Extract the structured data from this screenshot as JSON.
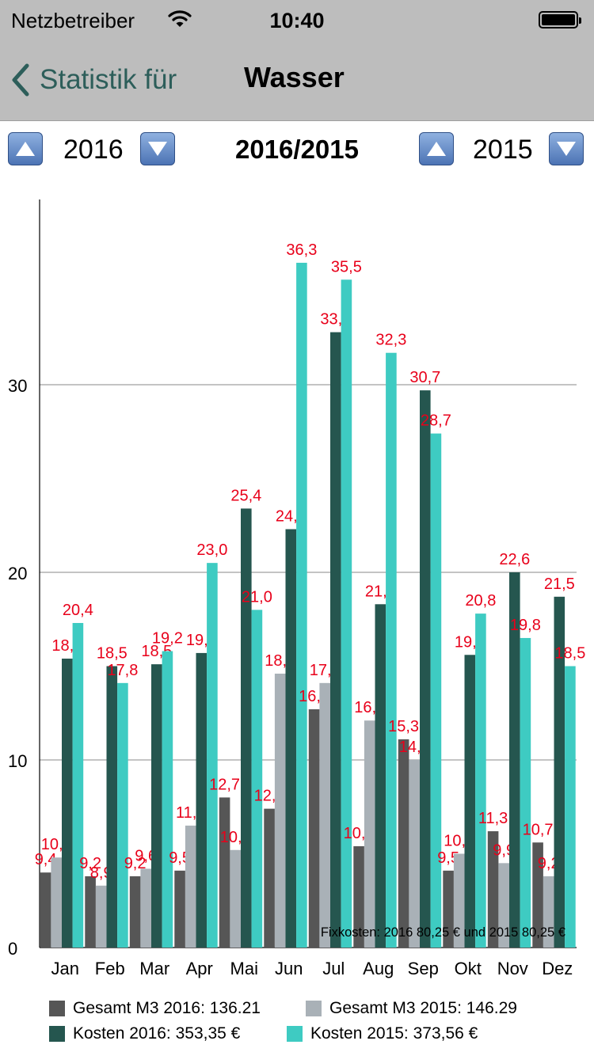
{
  "status_bar": {
    "carrier": "Netzbetreiber",
    "time": "10:40"
  },
  "nav": {
    "back_label": "Statistik für",
    "title": "Wasser"
  },
  "year_selector": {
    "left_year": "2016",
    "compare_label": "2016/2015",
    "right_year": "2015"
  },
  "colors": {
    "gesamt_2016": "#565656",
    "gesamt_2015": "#a9b1b7",
    "kosten_2016": "#25564f",
    "kosten_2015": "#3ecbc2",
    "value_label": "#e8001a"
  },
  "chart_data": {
    "type": "bar",
    "categories": [
      "Jan",
      "Feb",
      "Mar",
      "Apr",
      "Mai",
      "Jun",
      "Jul",
      "Aug",
      "Sep",
      "Okt",
      "Nov",
      "Dez"
    ],
    "ylim": [
      0,
      40
    ],
    "yticks": [
      0,
      10,
      20,
      30
    ],
    "grid": true,
    "series": [
      {
        "name": "Gesamt M3 2016: 136.21",
        "color": "#565656",
        "values": [
          4.0,
          3.8,
          3.8,
          4.1,
          8.0,
          7.4,
          12.7,
          5.4,
          11.1,
          4.1,
          6.2,
          5.6
        ]
      },
      {
        "name": "Gesamt M3 2015: 146.29",
        "color": "#a9b1b7",
        "values": [
          4.8,
          3.3,
          4.2,
          6.5,
          5.2,
          14.6,
          14.1,
          12.1,
          10.0,
          5.0,
          4.5,
          3.8
        ]
      },
      {
        "name": "Kosten 2016: 353,35 €",
        "color": "#25564f",
        "values": [
          15.4,
          15.0,
          15.1,
          15.7,
          23.4,
          22.3,
          32.8,
          18.3,
          29.7,
          15.6,
          20.0,
          18.7
        ]
      },
      {
        "name": "Kosten 2015: 373,56 €",
        "color": "#3ecbc2",
        "values": [
          17.3,
          14.1,
          15.8,
          20.5,
          18.0,
          36.5,
          35.6,
          31.7,
          27.4,
          17.8,
          16.5,
          15.0
        ]
      }
    ],
    "value_labels": [
      [
        "9,4",
        "9,2",
        "9,2",
        "9,5",
        "12,7",
        "12,2",
        "16,6",
        "10,6",
        "15,3",
        "9,5",
        "11,3",
        "10,7"
      ],
      [
        "10,2",
        "8,9",
        "9,6",
        "11,5",
        "10,5",
        "18,1",
        "17,7",
        "16,1",
        "14,3",
        "10,4",
        "9,9",
        "9,2"
      ],
      [
        "18,8",
        "18,5",
        "18,5",
        "19,1",
        "25,4",
        "24,5",
        "33,2",
        "21,2",
        "30,7",
        "19,0",
        "22,6",
        "21,5"
      ],
      [
        "20,4",
        "17,8",
        "19,2",
        "23,0",
        "21,0",
        "36,3",
        "35,5",
        "32,3",
        "28,7",
        "20,8",
        "19,8",
        "18,5"
      ]
    ],
    "annotation": "Fixkosten: 2016 80,25 € und 2015 80,25 €"
  }
}
